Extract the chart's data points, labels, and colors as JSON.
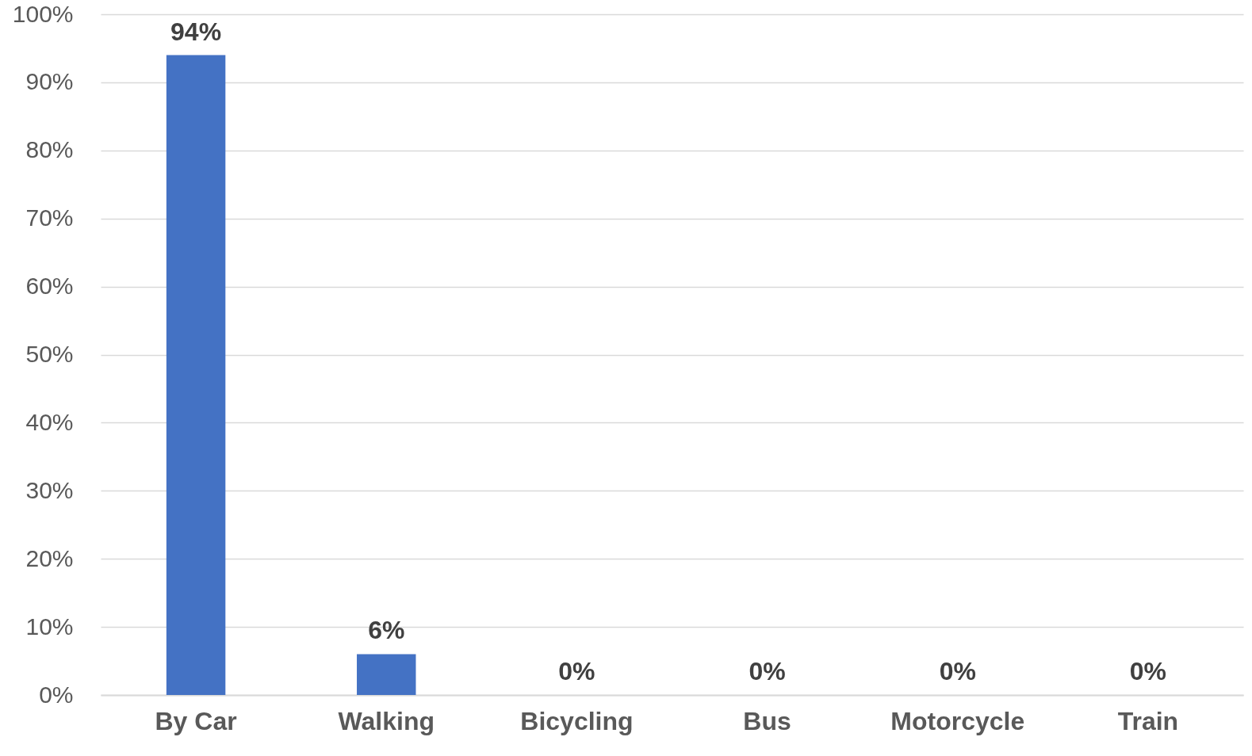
{
  "chart_data": {
    "type": "bar",
    "categories": [
      "By Car",
      "Walking",
      "Bicycling",
      "Bus",
      "Motorcycle",
      "Train"
    ],
    "values": [
      94,
      6,
      0,
      0,
      0,
      0
    ],
    "value_labels": [
      "94%",
      "6%",
      "0%",
      "0%",
      "0%",
      "0%"
    ],
    "color": "#4472c4",
    "ylim": [
      0,
      100
    ],
    "yticks": [
      {
        "value": 0,
        "label": "0%"
      },
      {
        "value": 10,
        "label": "10%"
      },
      {
        "value": 20,
        "label": "20%"
      },
      {
        "value": 30,
        "label": "30%"
      },
      {
        "value": 40,
        "label": "40%"
      },
      {
        "value": 50,
        "label": "50%"
      },
      {
        "value": 60,
        "label": "60%"
      },
      {
        "value": 70,
        "label": "70%"
      },
      {
        "value": 80,
        "label": "80%"
      },
      {
        "value": 90,
        "label": "90%"
      },
      {
        "value": 100,
        "label": "100%"
      }
    ],
    "grid": "y"
  }
}
